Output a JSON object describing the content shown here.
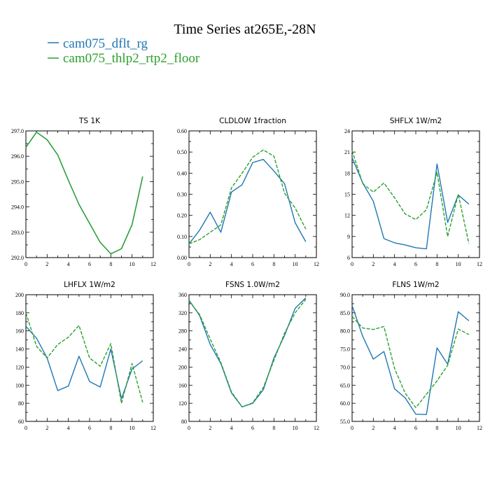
{
  "title": "Time Series at265E,-28N",
  "colors": {
    "series1": "#1f77b4",
    "series2": "#2ca02c"
  },
  "legend": [
    {
      "label": "cam075_dflt_rg",
      "color": "#1f77b4"
    },
    {
      "label": "cam075_thlp2_rtp2_floor",
      "color": "#2ca02c"
    }
  ],
  "chart_data": [
    {
      "type": "line",
      "title": "TS   1K",
      "x": [
        0,
        1,
        2,
        3,
        4,
        5,
        6,
        7,
        8,
        9,
        10,
        11
      ],
      "xlim": [
        0,
        12
      ],
      "xticks": [
        "0",
        "2",
        "4",
        "6",
        "8",
        "10",
        "12"
      ],
      "ylim": [
        292,
        297
      ],
      "yticks": [
        "292.0",
        "293.0",
        "294.0",
        "295.0",
        "296.0",
        "297.0"
      ],
      "series": [
        {
          "name": "cam075_dflt_rg",
          "style": "solid",
          "values": [
            296.35,
            296.95,
            296.65,
            296.05,
            295.05,
            294.1,
            293.35,
            292.6,
            292.15,
            292.35,
            293.3,
            295.2
          ]
        },
        {
          "name": "cam075_thlp2_rtp2_floor",
          "style": "solid",
          "values": [
            296.35,
            296.95,
            296.65,
            296.05,
            295.05,
            294.1,
            293.35,
            292.6,
            292.15,
            292.35,
            293.3,
            295.2
          ]
        }
      ]
    },
    {
      "type": "line",
      "title": "CLDLOW   1fraction",
      "x": [
        0,
        1,
        2,
        3,
        4,
        5,
        6,
        7,
        8,
        9,
        10,
        11
      ],
      "xlim": [
        0,
        12
      ],
      "xticks": [
        "0",
        "2",
        "4",
        "6",
        "8",
        "10",
        "12"
      ],
      "ylim": [
        0,
        0.6
      ],
      "yticks": [
        "0.00",
        "0.10",
        "0.20",
        "0.30",
        "0.40",
        "0.50",
        "0.60"
      ],
      "series": [
        {
          "name": "cam075_dflt_rg",
          "style": "solid",
          "values": [
            0.065,
            0.13,
            0.215,
            0.12,
            0.31,
            0.345,
            0.45,
            0.465,
            0.41,
            0.35,
            0.165,
            0.075
          ]
        },
        {
          "name": "cam075_thlp2_rtp2_floor",
          "style": "dashed",
          "values": [
            0.065,
            0.085,
            0.12,
            0.155,
            0.33,
            0.4,
            0.475,
            0.51,
            0.48,
            0.305,
            0.235,
            0.135
          ]
        }
      ]
    },
    {
      "type": "line",
      "title": "SHFLX   1W/m2",
      "x": [
        0,
        1,
        2,
        3,
        4,
        5,
        6,
        7,
        8,
        9,
        10,
        11
      ],
      "xlim": [
        0,
        12
      ],
      "xticks": [
        "0",
        "2",
        "4",
        "6",
        "8",
        "10",
        "12"
      ],
      "ylim": [
        6,
        24
      ],
      "yticks": [
        "6",
        "9",
        "12",
        "15",
        "18",
        "21",
        "24"
      ],
      "series": [
        {
          "name": "cam075_dflt_rg",
          "style": "solid",
          "values": [
            20.2,
            16.6,
            14.0,
            8.7,
            8.1,
            7.8,
            7.4,
            7.25,
            19.3,
            11.0,
            14.9,
            13.6
          ]
        },
        {
          "name": "cam075_thlp2_rtp2_floor",
          "style": "dashed",
          "values": [
            21.2,
            16.5,
            15.3,
            16.6,
            14.5,
            12.2,
            11.4,
            12.8,
            18.1,
            9.0,
            15.0,
            8.0
          ]
        }
      ]
    },
    {
      "type": "line",
      "title": "LHFLX   1W/m2",
      "x": [
        0,
        1,
        2,
        3,
        4,
        5,
        6,
        7,
        8,
        9,
        10,
        11
      ],
      "xlim": [
        0,
        12
      ],
      "xticks": [
        "0",
        "2",
        "4",
        "6",
        "8",
        "10",
        "12"
      ],
      "ylim": [
        60,
        200
      ],
      "yticks": [
        "60",
        "80",
        "100",
        "120",
        "140",
        "160",
        "180",
        "200"
      ],
      "series": [
        {
          "name": "cam075_dflt_rg",
          "style": "solid",
          "values": [
            165,
            152,
            130,
            94,
            99,
            132,
            104,
            98,
            140,
            85,
            118,
            127
          ]
        },
        {
          "name": "cam075_thlp2_rtp2_floor",
          "style": "dashed",
          "values": [
            180,
            143,
            130,
            145,
            153,
            166,
            130,
            121,
            146,
            80,
            124,
            81
          ]
        }
      ]
    },
    {
      "type": "line",
      "title": "FSNS   1.0W/m2",
      "x": [
        0,
        1,
        2,
        3,
        4,
        5,
        6,
        7,
        8,
        9,
        10,
        11
      ],
      "xlim": [
        0,
        12
      ],
      "xticks": [
        "0",
        "2",
        "4",
        "6",
        "8",
        "10",
        "12"
      ],
      "ylim": [
        80,
        360
      ],
      "yticks": [
        "80",
        "120",
        "160",
        "200",
        "240",
        "280",
        "320",
        "360"
      ],
      "series": [
        {
          "name": "cam075_dflt_rg",
          "style": "solid",
          "values": [
            348,
            314,
            250,
            208,
            143,
            112,
            120,
            150,
            220,
            270,
            330,
            353
          ]
        },
        {
          "name": "cam075_thlp2_rtp2_floor",
          "style": "dashed",
          "values": [
            346,
            316,
            262,
            210,
            145,
            112,
            121,
            155,
            215,
            275,
            320,
            350
          ]
        }
      ]
    },
    {
      "type": "line",
      "title": "FLNS   1W/m2",
      "x": [
        0,
        1,
        2,
        3,
        4,
        5,
        6,
        7,
        8,
        9,
        10,
        11
      ],
      "xlim": [
        0,
        12
      ],
      "xticks": [
        "0",
        "2",
        "4",
        "6",
        "8",
        "10",
        "12"
      ],
      "ylim": [
        55,
        90
      ],
      "yticks": [
        "55.0",
        "60.0",
        "65.0",
        "70.0",
        "75.0",
        "80.0",
        "85.0",
        "90.0"
      ],
      "series": [
        {
          "name": "cam075_dflt_rg",
          "style": "solid",
          "values": [
            87.0,
            78.5,
            72.2,
            74.3,
            64.0,
            61.5,
            57.0,
            56.9,
            75.3,
            70.8,
            85.3,
            82.8
          ]
        },
        {
          "name": "cam075_thlp2_rtp2_floor",
          "style": "dashed",
          "values": [
            84.0,
            80.8,
            80.4,
            81.2,
            69.6,
            62.8,
            58.8,
            62.5,
            66.2,
            70.5,
            80.5,
            79.0
          ]
        }
      ]
    }
  ]
}
